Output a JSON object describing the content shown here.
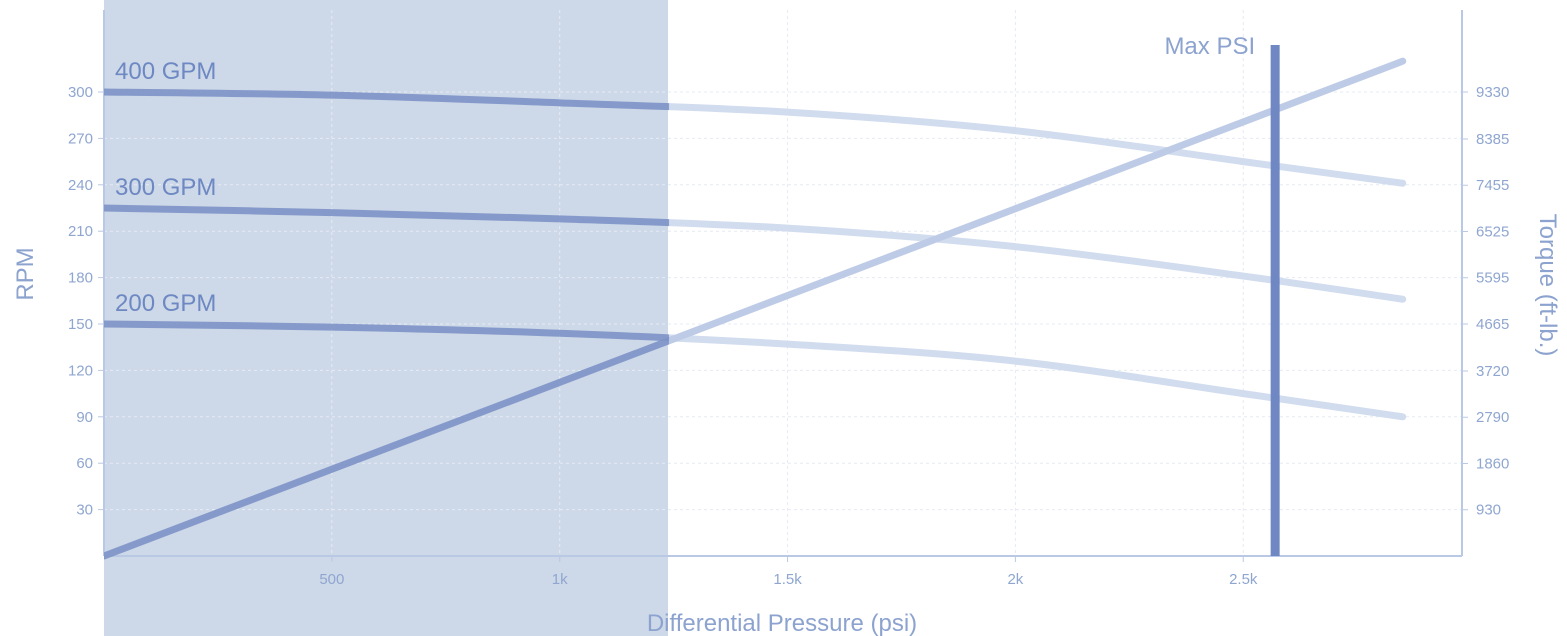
{
  "chart_data": {
    "type": "line",
    "xlabel": "Differential Pressure (psi)",
    "ylabel": "RPM",
    "y2label": "Torque (ft-lb.)",
    "xlim": [
      0,
      2980
    ],
    "ylim": [
      0,
      300
    ],
    "y2lim": [
      0,
      9330
    ],
    "x_ticks": [
      500,
      1000,
      1500,
      2000,
      2500
    ],
    "x_tick_labels": [
      "500",
      "1k",
      "1.5k",
      "2k",
      "2.5k"
    ],
    "y_ticks": [
      30,
      60,
      90,
      120,
      150,
      180,
      210,
      240,
      270,
      300
    ],
    "y_tick_labels": [
      "30",
      "60",
      "90",
      "120",
      "150",
      "180",
      "210",
      "240",
      "270",
      "300"
    ],
    "y2_ticks": [
      930,
      1860,
      2790,
      3720,
      4665,
      5595,
      6525,
      7455,
      8385,
      9330
    ],
    "y2_tick_labels": [
      "930",
      "1860",
      "2790",
      "3720",
      "4665",
      "5595",
      "6525",
      "7455",
      "8385",
      "9330"
    ],
    "grid": true,
    "highlight_range": [
      0,
      1240
    ],
    "series": [
      {
        "name": "400 GPM",
        "axis": "left",
        "x": [
          0,
          500,
          1000,
          1500,
          2000,
          2500,
          2850
        ],
        "y": [
          300,
          298,
          293,
          287,
          275,
          255,
          241
        ]
      },
      {
        "name": "300 GPM",
        "axis": "left",
        "x": [
          0,
          500,
          1000,
          1500,
          2000,
          2500,
          2850
        ],
        "y": [
          225,
          222,
          218,
          212,
          200,
          181,
          166
        ]
      },
      {
        "name": "200 GPM",
        "axis": "left",
        "x": [
          0,
          500,
          1000,
          1500,
          2000,
          2500,
          2850
        ],
        "y": [
          150,
          148,
          144,
          137,
          126,
          105,
          90
        ]
      },
      {
        "axis": "right",
        "x": [
          0,
          2850
        ],
        "y": [
          0,
          9950
        ]
      }
    ],
    "max_line": {
      "label": "Max PSI",
      "x": 2570
    },
    "colors": {
      "highlight": "#cdd8e8",
      "line_light": "#d2dcef",
      "line_dark": "#7d94c6",
      "torque_light": "#bdcbe6",
      "max_line": "#6f87c2",
      "grid": "#e6ebf4",
      "axis": "#b9c8e4"
    }
  }
}
